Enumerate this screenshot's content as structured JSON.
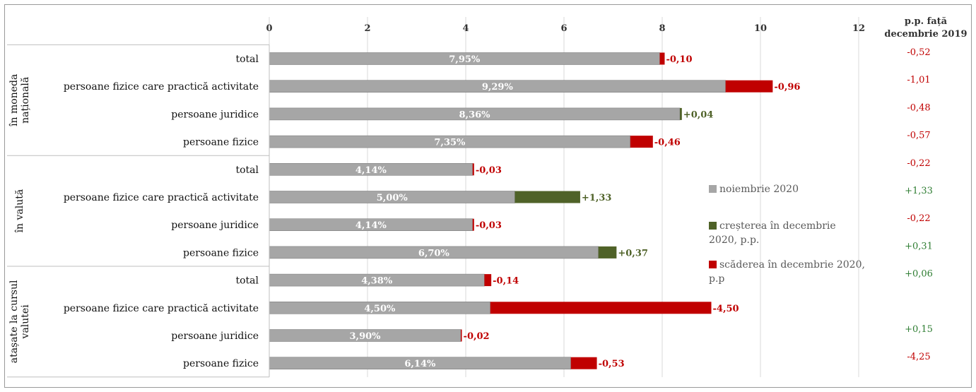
{
  "chart_data": {
    "type": "bar",
    "stacked": true,
    "orientation": "horizontal",
    "xlim": [
      0,
      12
    ],
    "xticks": [
      "0",
      "2",
      "4",
      "6",
      "8",
      "10",
      "12"
    ],
    "right_header": "p.p. față decembrie 2019",
    "groups": [
      {
        "label": "în moneda națională",
        "label_lines": [
          "în moneda",
          "națională"
        ]
      },
      {
        "label": "în valută",
        "label_lines": [
          "în valută"
        ]
      },
      {
        "label": "atașate la cursul valutei",
        "label_lines": [
          "atașate la cursul",
          "valutei"
        ]
      }
    ],
    "rows": [
      {
        "group": 0,
        "category": "total",
        "value": 7.95,
        "value_label": "7,95%",
        "change": -0.1,
        "change_label": "-0,10",
        "pp_dec2019": "-0,52"
      },
      {
        "group": 0,
        "category": "persoane fizice care practică activitate",
        "value": 9.29,
        "value_label": "9,29%",
        "change": -0.96,
        "change_label": "-0,96",
        "pp_dec2019": "-1,01"
      },
      {
        "group": 0,
        "category": "persoane juridice",
        "value": 8.36,
        "value_label": "8,36%",
        "change": 0.04,
        "change_label": "+0,04",
        "pp_dec2019": "-0,48"
      },
      {
        "group": 0,
        "category": "persoane fizice",
        "value": 7.35,
        "value_label": "7,35%",
        "change": -0.46,
        "change_label": "-0,46",
        "pp_dec2019": "-0,57"
      },
      {
        "group": 1,
        "category": "total",
        "value": 4.14,
        "value_label": "4,14%",
        "change": -0.03,
        "change_label": "-0,03",
        "pp_dec2019": "-0,22"
      },
      {
        "group": 1,
        "category": "persoane fizice care practică activitate",
        "value": 5.0,
        "value_label": "5,00%",
        "change": 1.33,
        "change_label": "+1,33",
        "pp_dec2019": "+1,33"
      },
      {
        "group": 1,
        "category": "persoane juridice",
        "value": 4.14,
        "value_label": "4,14%",
        "change": -0.03,
        "change_label": "-0,03",
        "pp_dec2019": "-0,22"
      },
      {
        "group": 1,
        "category": "persoane fizice",
        "value": 6.7,
        "value_label": "6,70%",
        "change": 0.37,
        "change_label": "+0,37",
        "pp_dec2019": "+0,31"
      },
      {
        "group": 2,
        "category": "total",
        "value": 4.38,
        "value_label": "4,38%",
        "change": -0.14,
        "change_label": "-0,14",
        "pp_dec2019": "+0,06"
      },
      {
        "group": 2,
        "category": "persoane fizice care practică activitate",
        "value": 4.5,
        "value_label": "4,50%",
        "change": -4.5,
        "change_label": "-4,50",
        "pp_dec2019": ""
      },
      {
        "group": 2,
        "category": "persoane juridice",
        "value": 3.9,
        "value_label": "3,90%",
        "change": -0.02,
        "change_label": "-0,02",
        "pp_dec2019": "+0,15"
      },
      {
        "group": 2,
        "category": "persoane fizice",
        "value": 6.14,
        "value_label": "6,14%",
        "change": -0.53,
        "change_label": "-0,53",
        "pp_dec2019": "-4,25"
      }
    ],
    "legend": [
      {
        "name": "noiembrie 2020",
        "color": "#a6a6a6",
        "lines": [
          "noiembrie 2020"
        ]
      },
      {
        "name": "creșterea în decembrie 2020, p.p.",
        "color": "#4f6228",
        "lines": [
          "creșterea în decembrie",
          "2020, p.p."
        ]
      },
      {
        "name": "scăderea în decembrie 2020, p.p",
        "color": "#c00000",
        "lines": [
          "scăderea în decembrie 2020,",
          "p.p"
        ]
      }
    ],
    "colors": {
      "base": "#a6a6a6",
      "increase": "#4f6228",
      "decrease": "#c00000",
      "positive_text": "#2e7d32",
      "negative_text": "#c00000"
    }
  }
}
